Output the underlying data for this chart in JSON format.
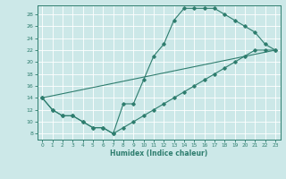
{
  "xlabel": "Humidex (Indice chaleur)",
  "background_color": "#cce8e8",
  "grid_color": "#ffffff",
  "line_color": "#2e7d6e",
  "xlim": [
    -0.5,
    23.5
  ],
  "ylim": [
    7,
    29.5
  ],
  "yticks": [
    8,
    10,
    12,
    14,
    16,
    18,
    20,
    22,
    24,
    26,
    28
  ],
  "xticks": [
    0,
    1,
    2,
    3,
    4,
    5,
    6,
    7,
    8,
    9,
    10,
    11,
    12,
    13,
    14,
    15,
    16,
    17,
    18,
    19,
    20,
    21,
    22,
    23
  ],
  "line1_x": [
    0,
    1,
    2,
    3,
    4,
    5,
    6,
    7,
    8,
    9,
    10,
    11,
    12,
    13,
    14,
    15,
    16,
    17,
    18,
    19,
    20,
    21,
    22,
    23
  ],
  "line1_y": [
    14,
    12,
    11,
    11,
    10,
    9,
    9,
    8,
    13,
    13,
    17,
    21,
    23,
    27,
    29,
    29,
    29,
    29,
    28,
    27,
    26,
    25,
    23,
    22
  ],
  "line2_x": [
    0,
    1,
    2,
    3,
    4,
    5,
    6,
    7,
    8,
    9,
    10,
    11,
    12,
    13,
    14,
    15,
    16,
    17,
    18,
    19,
    20,
    21,
    22,
    23
  ],
  "line2_y": [
    14,
    12,
    11,
    11,
    10,
    9,
    9,
    8,
    9,
    10,
    11,
    12,
    13,
    14,
    15,
    16,
    17,
    18,
    19,
    20,
    21,
    22,
    22,
    22
  ],
  "line3_x": [
    0,
    23
  ],
  "line3_y": [
    14,
    22
  ],
  "figwidth": 3.2,
  "figheight": 2.0,
  "dpi": 100
}
